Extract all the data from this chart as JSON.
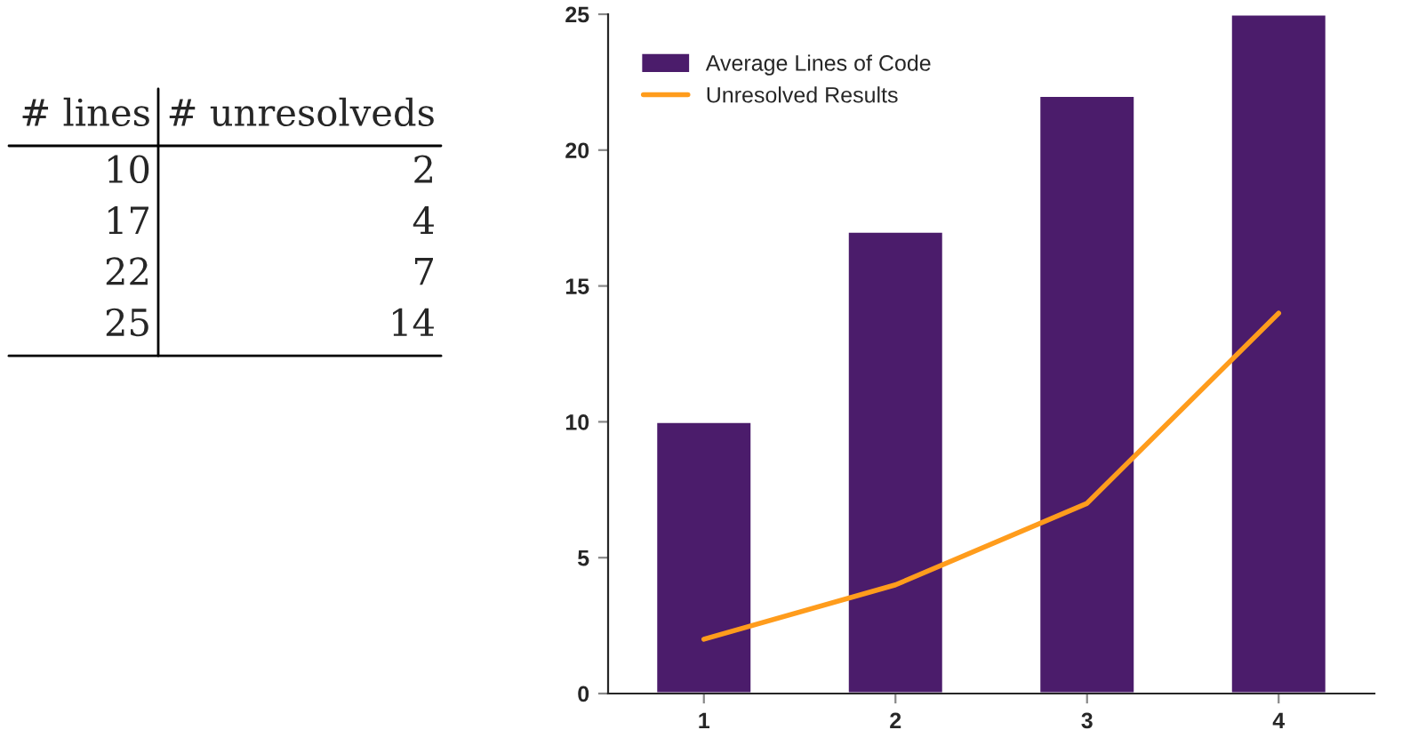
{
  "chart_data": [
    {
      "type": "other",
      "annotations": [
        "# lines",
        "# unresolveds",
        "10",
        "2",
        "17",
        "4",
        "22",
        "7",
        "25",
        "14"
      ]
    },
    {
      "type": "bar",
      "categories": [
        "1",
        "2",
        "3",
        "4"
      ],
      "series": [
        {
          "name": "Average Lines of Code",
          "color": "#4b1c6b",
          "values": [
            10,
            17,
            22,
            25
          ]
        },
        {
          "name": "Unresolved Results",
          "type": "line",
          "color": "#ff9c1c",
          "values": [
            2,
            4,
            7,
            14
          ]
        }
      ],
      "ylim": [
        0,
        25
      ],
      "yticks": [
        0,
        5,
        10,
        15,
        20,
        25
      ],
      "grid": false,
      "legend": "top left"
    }
  ]
}
